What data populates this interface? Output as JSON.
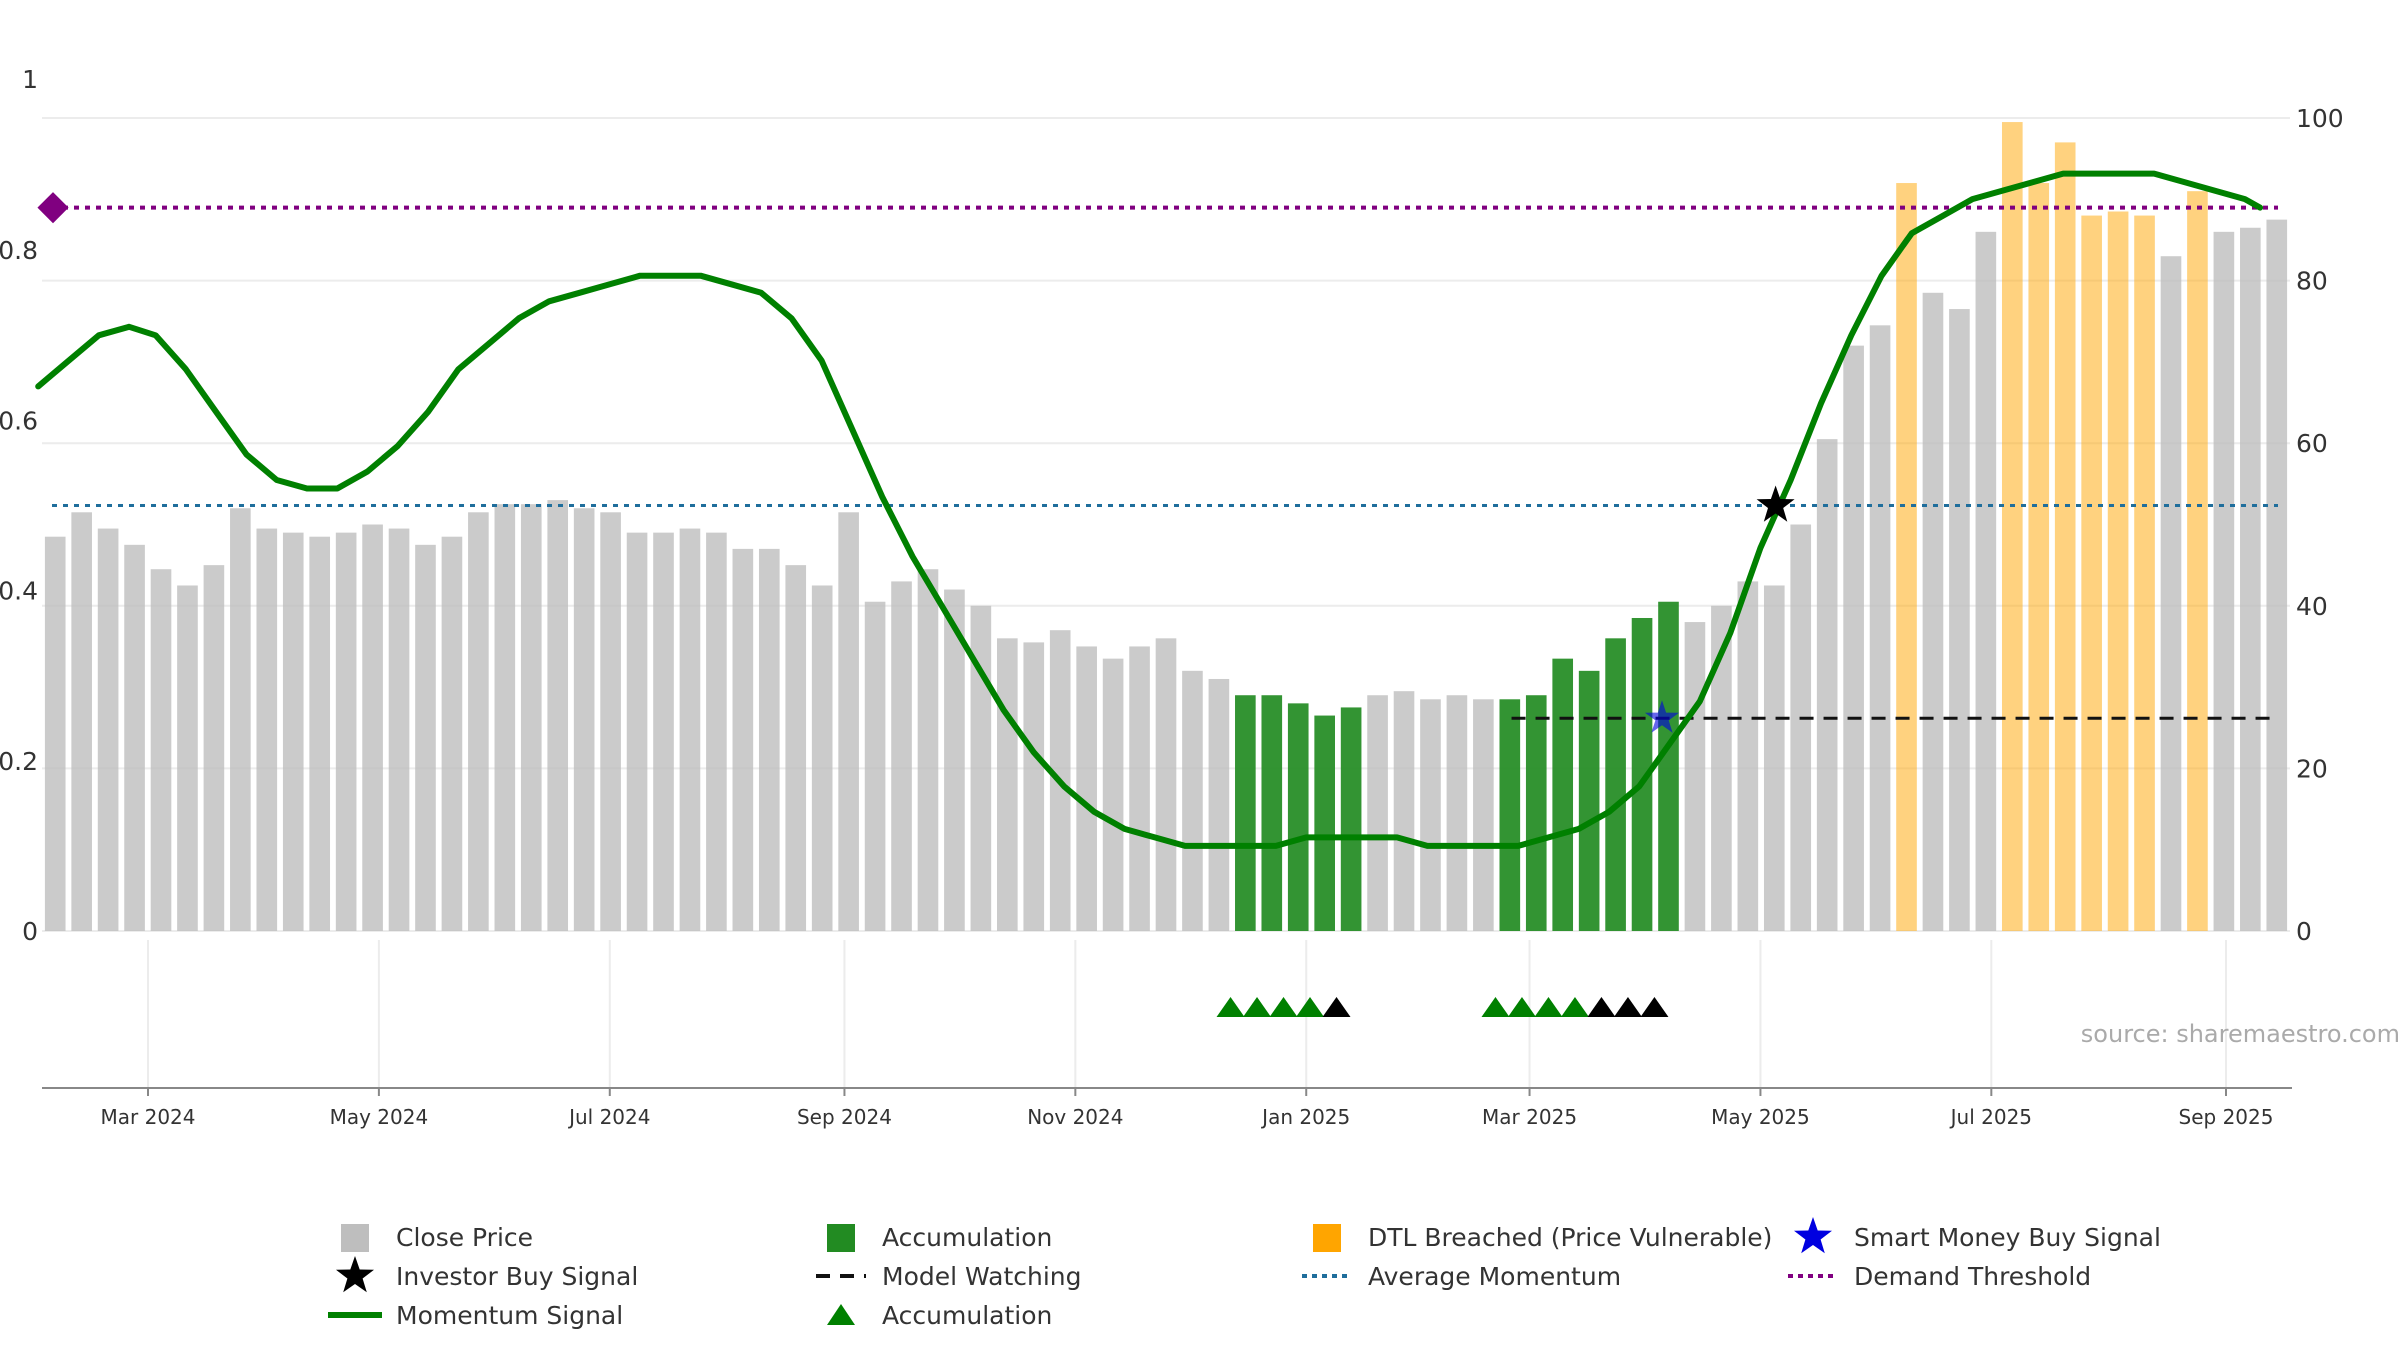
{
  "chart_data": {
    "type": "bar",
    "title": "",
    "xlabel": "",
    "ylabel_left": "",
    "ylabel_right": "",
    "source": "source: sharemaestro.com",
    "left_axis": {
      "range": [
        0,
        1.0
      ],
      "ticks": [
        "0",
        "0.2",
        "0.4",
        "0.6",
        "0.8",
        "1"
      ]
    },
    "right_axis": {
      "range": [
        0,
        100
      ],
      "ticks": [
        "0",
        "20",
        "40",
        "60",
        "80",
        "100"
      ]
    },
    "x_ticks": [
      "Mar 2024",
      "May 2024",
      "Jul 2024",
      "Sep 2024",
      "Nov 2024",
      "Jan 2025",
      "Mar 2025",
      "May 2025",
      "Jul 2025",
      "Sep 2025"
    ],
    "grid": true,
    "legend_position": "bottom",
    "colors": {
      "close_price": "#bebebe",
      "accumulation": "#228b22",
      "dtl_breached": "#ffa500",
      "momentum": "#008000",
      "average_momentum": "#1f6e9c",
      "demand_threshold": "#800080",
      "smart_money": "#0000e0",
      "investor_buy": "#000000"
    },
    "bars": {
      "close_price": [
        48.5,
        51.5,
        49.5,
        47.5,
        44.5,
        42.5,
        45,
        52,
        49.5,
        49,
        48.5,
        49,
        50,
        49.5,
        47.5,
        48.5,
        51.5,
        52.5,
        52.5,
        53,
        52,
        51.5,
        49,
        49,
        49.5,
        49,
        47,
        47,
        45,
        42.5,
        51.5,
        40.5,
        43,
        44.5,
        42,
        40,
        36,
        35.5,
        37,
        35,
        33.5,
        35,
        36,
        32,
        31,
        29,
        29,
        28,
        26.5,
        27.5,
        29,
        29.5,
        28.5,
        29,
        28.5,
        28.5,
        29,
        33.5,
        32,
        36,
        38.5,
        40.5,
        38,
        40,
        43,
        42.5,
        50,
        60.5,
        72,
        74.5,
        92,
        78.5,
        76.5,
        86,
        99.5,
        92,
        97,
        88,
        88.5,
        88,
        83,
        91,
        86,
        86.5,
        87.5
      ],
      "bar_kind": [
        "gray",
        "gray",
        "gray",
        "gray",
        "gray",
        "gray",
        "gray",
        "gray",
        "gray",
        "gray",
        "gray",
        "gray",
        "gray",
        "gray",
        "gray",
        "gray",
        "gray",
        "gray",
        "gray",
        "gray",
        "gray",
        "gray",
        "gray",
        "gray",
        "gray",
        "gray",
        "gray",
        "gray",
        "gray",
        "gray",
        "gray",
        "gray",
        "gray",
        "gray",
        "gray",
        "gray",
        "gray",
        "gray",
        "gray",
        "gray",
        "gray",
        "gray",
        "gray",
        "gray",
        "gray",
        "green",
        "green",
        "green",
        "green",
        "green",
        "gray",
        "gray",
        "gray",
        "gray",
        "gray",
        "green",
        "green",
        "green",
        "green",
        "green",
        "green",
        "green",
        "gray",
        "gray",
        "gray",
        "gray",
        "gray",
        "gray",
        "gray",
        "gray",
        "orange",
        "gray",
        "gray",
        "gray",
        "orange",
        "orange",
        "orange",
        "orange",
        "orange",
        "orange",
        "gray",
        "orange",
        "gray",
        "gray",
        "gray"
      ]
    },
    "momentum": {
      "dates": [
        "2024-02-01",
        "2024-02-09",
        "2024-02-17",
        "2024-02-25",
        "2024-03-03",
        "2024-03-11",
        "2024-03-19",
        "2024-03-27",
        "2024-04-04",
        "2024-04-12",
        "2024-04-20",
        "2024-04-28",
        "2024-05-06",
        "2024-05-14",
        "2024-05-22",
        "2024-05-30",
        "2024-06-07",
        "2024-06-15",
        "2024-06-23",
        "2024-07-01",
        "2024-07-09",
        "2024-07-17",
        "2024-07-25",
        "2024-08-02",
        "2024-08-10",
        "2024-08-18",
        "2024-08-26",
        "2024-09-03",
        "2024-09-11",
        "2024-09-19",
        "2024-09-27",
        "2024-10-05",
        "2024-10-13",
        "2024-10-21",
        "2024-10-29",
        "2024-11-06",
        "2024-11-14",
        "2024-11-22",
        "2024-11-30",
        "2024-12-08",
        "2024-12-16",
        "2024-12-24",
        "2025-01-01",
        "2025-01-09",
        "2025-01-17",
        "2025-01-25",
        "2025-02-02",
        "2025-02-10",
        "2025-02-18",
        "2025-02-26",
        "2025-03-06",
        "2025-03-14",
        "2025-03-22",
        "2025-03-30",
        "2025-04-07",
        "2025-04-15",
        "2025-04-23",
        "2025-05-01",
        "2025-05-09",
        "2025-05-17",
        "2025-05-25",
        "2025-06-02",
        "2025-06-10",
        "2025-06-18",
        "2025-06-26",
        "2025-07-04",
        "2025-07-12",
        "2025-07-20",
        "2025-07-28",
        "2025-08-05",
        "2025-08-13",
        "2025-08-21",
        "2025-08-29",
        "2025-09-06",
        "2025-09-10"
      ],
      "values": [
        0.64,
        0.67,
        0.7,
        0.71,
        0.7,
        0.66,
        0.61,
        0.56,
        0.53,
        0.52,
        0.52,
        0.54,
        0.57,
        0.61,
        0.66,
        0.69,
        0.72,
        0.74,
        0.75,
        0.76,
        0.77,
        0.77,
        0.77,
        0.76,
        0.75,
        0.72,
        0.67,
        0.59,
        0.51,
        0.44,
        0.38,
        0.32,
        0.26,
        0.21,
        0.17,
        0.14,
        0.12,
        0.11,
        0.1,
        0.1,
        0.1,
        0.1,
        0.11,
        0.11,
        0.11,
        0.11,
        0.1,
        0.1,
        0.1,
        0.1,
        0.11,
        0.12,
        0.14,
        0.17,
        0.22,
        0.27,
        0.35,
        0.45,
        0.53,
        0.62,
        0.7,
        0.77,
        0.82,
        0.84,
        0.86,
        0.87,
        0.88,
        0.89,
        0.89,
        0.89,
        0.89,
        0.88,
        0.87,
        0.86,
        0.85
      ]
    },
    "average_momentum": 0.5,
    "demand_threshold": 0.85,
    "model_watching_level": 0.25,
    "model_watching_start": "2025-03-01",
    "investor_buy_signal": {
      "date": "2025-05-05",
      "value": 0.5
    },
    "smart_money_buy_signal": {
      "date": "2025-04-05",
      "value": 0.25
    },
    "accumulation_markers": {
      "green": [
        "2024-12-12",
        "2024-12-19",
        "2024-12-26",
        "2025-01-02",
        "2025-02-20",
        "2025-02-27",
        "2025-03-06",
        "2025-03-13"
      ],
      "black": [
        "2025-01-09",
        "2025-03-20",
        "2025-03-27",
        "2025-04-03"
      ]
    },
    "legend": [
      {
        "key": "close",
        "label": "Close Price"
      },
      {
        "key": "accum_bar",
        "label": "Accumulation"
      },
      {
        "key": "dtl",
        "label": "DTL Breached (Price Vulnerable)"
      },
      {
        "key": "smart",
        "label": "Smart Money Buy Signal"
      },
      {
        "key": "investor",
        "label": "Investor Buy Signal"
      },
      {
        "key": "watch",
        "label": "Model Watching"
      },
      {
        "key": "avg",
        "label": "Average Momentum"
      },
      {
        "key": "demand",
        "label": "Demand Threshold"
      },
      {
        "key": "momentum",
        "label": "Momentum Signal"
      },
      {
        "key": "accum_tri",
        "label": "Accumulation"
      }
    ]
  }
}
